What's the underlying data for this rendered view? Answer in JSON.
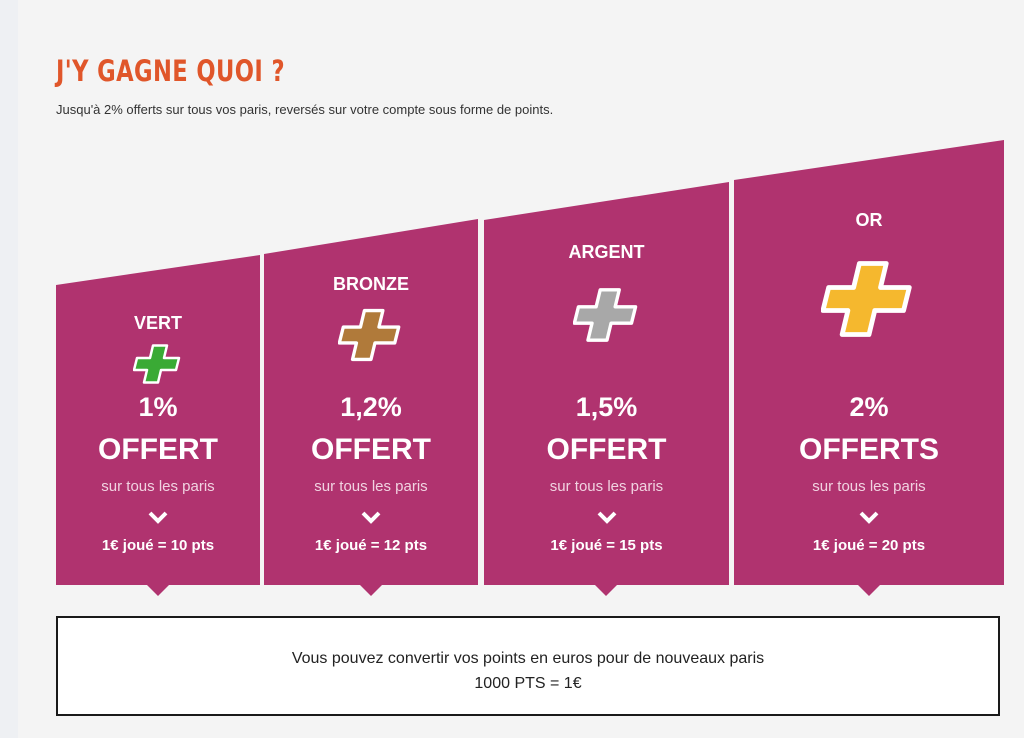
{
  "header": {
    "title": "J'Y GAGNE QUOI ?",
    "subtitle": "Jusqu'à 2% offerts sur tous vos paris, reversés sur votre compte sous forme de points."
  },
  "tiers": [
    {
      "name": "VERT",
      "percent": "1%",
      "offer": "OFFERT",
      "subtitle": "sur tous les paris",
      "rate": "1€ joué = 10 pts",
      "color": "#3aaa35",
      "icon": "plus-icon"
    },
    {
      "name": "BRONZE",
      "percent": "1,2%",
      "offer": "OFFERT",
      "subtitle": "sur tous les paris",
      "rate": "1€ joué = 12 pts",
      "color": "#b07a3a",
      "icon": "plus-icon"
    },
    {
      "name": "ARGENT",
      "percent": "1,5%",
      "offer": "OFFERT",
      "subtitle": "sur tous les paris",
      "rate": "1€ joué = 15 pts",
      "color": "#a8a8a8",
      "icon": "plus-icon"
    },
    {
      "name": "OR",
      "percent": "2%",
      "offer": "OFFERTS",
      "subtitle": "sur tous les paris",
      "rate": "1€ joué = 20 pts",
      "color": "#f5b82e",
      "icon": "plus-icon"
    }
  ],
  "conversion": {
    "line1": "Vous pouvez convertir vos points en euros pour de nouveaux paris",
    "line2": "1000 PTS = 1€"
  },
  "colors": {
    "accent": "#e0562a",
    "tier_background": "#b0336f"
  }
}
